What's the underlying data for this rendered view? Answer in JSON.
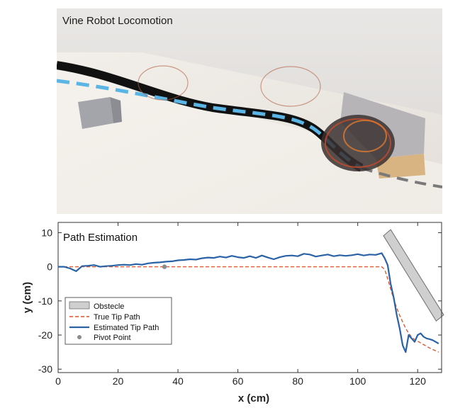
{
  "photo": {
    "title": "Vine Robot Locomotion"
  },
  "chart_data": {
    "type": "line",
    "title": "Path Estimation",
    "xlabel": "x (cm)",
    "ylabel": "y (cm)",
    "xlim": [
      0,
      128
    ],
    "ylim": [
      -31,
      13
    ],
    "x_ticks": [
      0,
      20,
      40,
      60,
      80,
      100,
      120
    ],
    "y_ticks": [
      10,
      0,
      -10,
      -20,
      -30
    ],
    "x_tick_labels": [
      "0",
      "20",
      "40",
      "60",
      "80",
      "100",
      "120"
    ],
    "y_tick_labels": [
      "10",
      "0",
      "-10",
      "-20",
      "-30"
    ],
    "series": [
      {
        "name": "True Tip Path",
        "color": "#d9532b",
        "style": "dashed",
        "x": [
          0,
          10,
          30,
          50,
          70,
          90,
          108,
          109,
          110,
          111,
          112,
          113,
          114,
          115,
          116,
          117,
          118,
          119,
          120,
          121,
          122,
          123,
          124,
          125,
          126,
          127
        ],
        "y": [
          0,
          0,
          0,
          0,
          0,
          0,
          0,
          -0.8,
          -3.5,
          -6.5,
          -9.5,
          -12,
          -14.2,
          -16.2,
          -18,
          -19.5,
          -20.6,
          -21.3,
          -21.8,
          -22.3,
          -22.8,
          -23.3,
          -23.8,
          -24.2,
          -24.6,
          -25
        ]
      },
      {
        "name": "Estimated Tip Path",
        "color": "#2a62a6",
        "style": "solid",
        "x": [
          0,
          2,
          4,
          6,
          8,
          10,
          12,
          14,
          16,
          18,
          20,
          22,
          24,
          26,
          28,
          30,
          32,
          34,
          36,
          38,
          40,
          42,
          44,
          46,
          48,
          50,
          52,
          54,
          56,
          58,
          60,
          62,
          64,
          66,
          68,
          70,
          72,
          74,
          76,
          78,
          80,
          82,
          84,
          86,
          88,
          90,
          92,
          94,
          96,
          98,
          100,
          102,
          104,
          106,
          108,
          109,
          110,
          111,
          112,
          113,
          114,
          115,
          116,
          117,
          118,
          119,
          120,
          121,
          122,
          123,
          124,
          125,
          126,
          127
        ],
        "y": [
          0,
          0,
          -0.5,
          -1.3,
          0.2,
          0.3,
          0.5,
          0,
          0.2,
          0.3,
          0.5,
          0.6,
          0.5,
          0.8,
          0.6,
          1.0,
          1.2,
          1.3,
          1.5,
          1.6,
          1.9,
          2.0,
          2.2,
          2.1,
          2.5,
          2.7,
          2.6,
          3.0,
          2.7,
          3.2,
          2.8,
          2.6,
          3.1,
          2.6,
          3.3,
          2.7,
          2.2,
          2.8,
          3.2,
          3.3,
          3.1,
          3.8,
          3.6,
          3.0,
          3.3,
          3.6,
          3.1,
          3.4,
          3.2,
          3.4,
          3.7,
          3.3,
          3.6,
          3.5,
          4.0,
          2.5,
          0.5,
          -5,
          -9,
          -14,
          -18,
          -23,
          -25,
          -20,
          -21,
          -22,
          -20,
          -19.5,
          -20.5,
          -21,
          -21.2,
          -21.5,
          -22,
          -22.5
        ]
      },
      {
        "name": "Pivot Point",
        "color": "#8c8c8c",
        "style": "marker",
        "x": [
          35.5
        ],
        "y": [
          0
        ]
      }
    ],
    "obstacle": {
      "name": "Obstecle",
      "color": "#cfcfcf",
      "corners_x": [
        111,
        128.7,
        126.2,
        108.6
      ],
      "corners_y": [
        10.9,
        -14.1,
        -15.9,
        9.1
      ]
    },
    "legend": {
      "position": "bottom-left",
      "entries": [
        "Obstecle",
        "True Tip Path",
        "Estimated Tip Path",
        "Pivot Point"
      ]
    },
    "grid": false
  }
}
